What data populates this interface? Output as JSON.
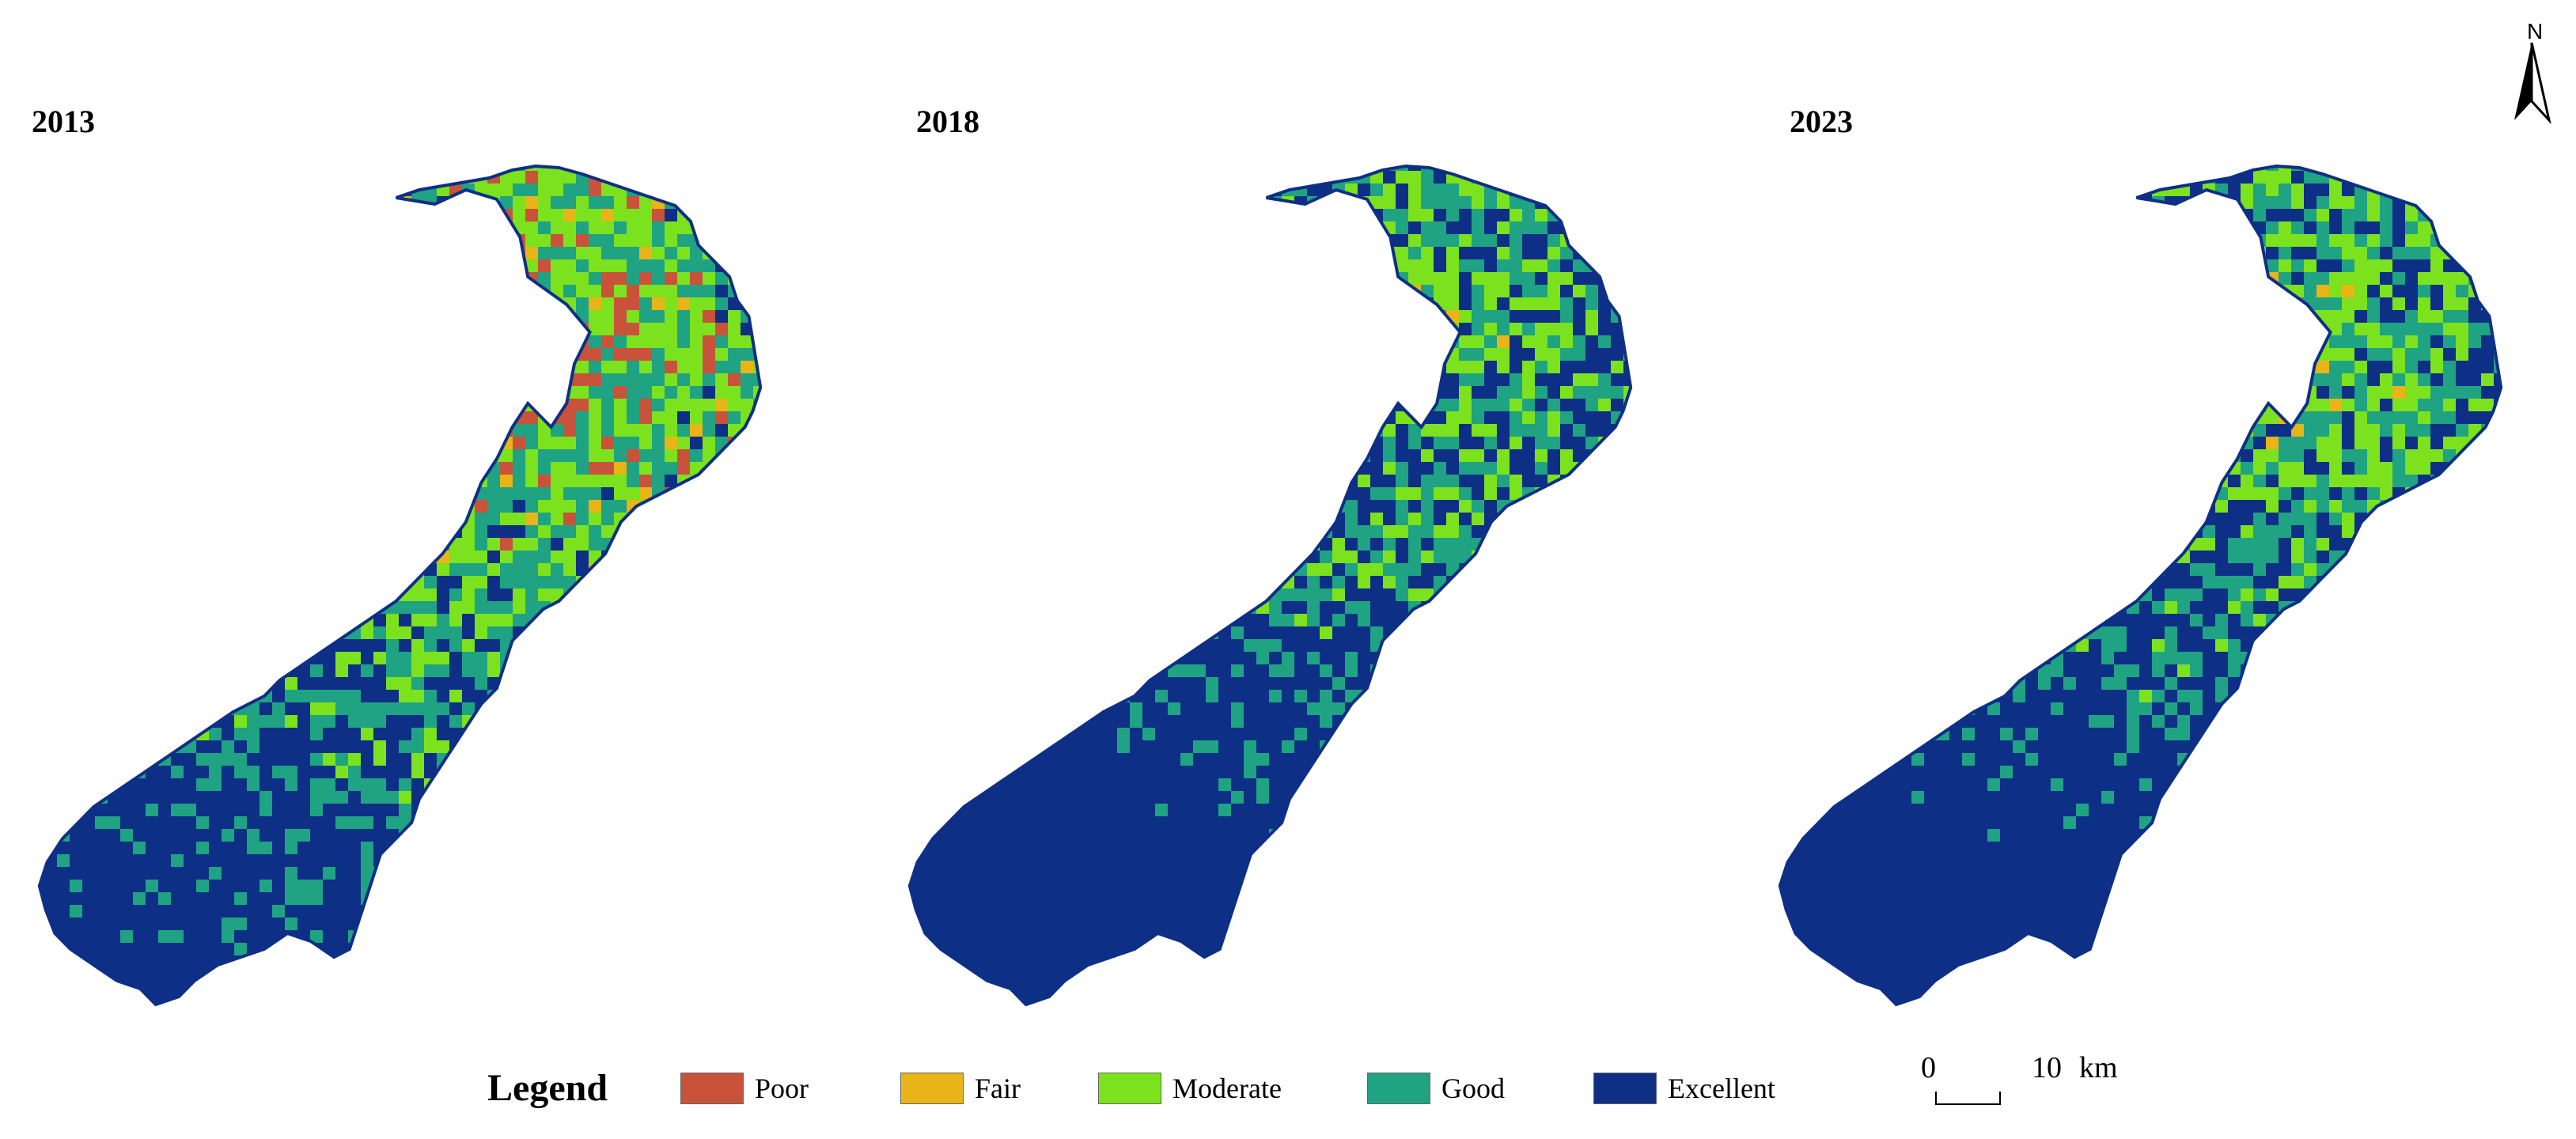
{
  "panels": [
    {
      "year": "2013",
      "class_shares": {
        "Poor": 0.2,
        "Fair": 0.03,
        "Moderate": 0.32,
        "Good": 0.25,
        "Excellent": 0.2
      }
    },
    {
      "year": "2018",
      "class_shares": {
        "Poor": 0.0,
        "Fair": 0.06,
        "Moderate": 0.26,
        "Good": 0.25,
        "Excellent": 0.43
      }
    },
    {
      "year": "2023",
      "class_shares": {
        "Poor": 0.04,
        "Fair": 0.06,
        "Moderate": 0.28,
        "Good": 0.25,
        "Excellent": 0.37
      }
    }
  ],
  "legend": {
    "title": "Legend",
    "items": [
      {
        "label": "Poor",
        "color": "#c8533a"
      },
      {
        "label": "Fair",
        "color": "#e8b418"
      },
      {
        "label": "Moderate",
        "color": "#7ce21e"
      },
      {
        "label": "Good",
        "color": "#1fa383"
      },
      {
        "label": "Excellent",
        "color": "#0e2f86"
      }
    ]
  },
  "north_arrow": {
    "label": "N"
  },
  "scale_bar": {
    "start": "0",
    "end": "10",
    "unit": "km"
  }
}
